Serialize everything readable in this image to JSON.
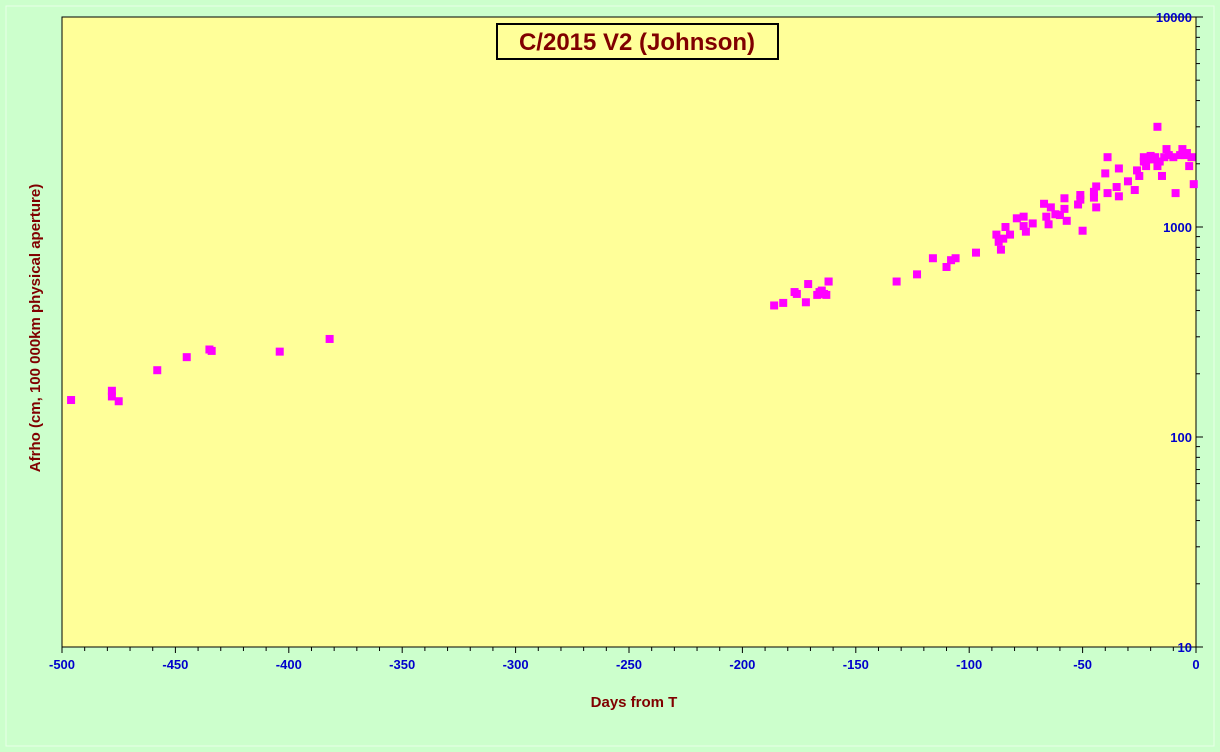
{
  "colors": {
    "background": "#ccffcc",
    "plot_area": "#ffff99",
    "marker": "#ff00ff",
    "tick_label": "#0000cc",
    "title_text": "#800000",
    "axis_title": "#800000"
  },
  "chart_data": {
    "type": "scatter",
    "title": "C/2015 V2 (Johnson)",
    "xlabel": "Days from T",
    "ylabel": "Afrho (cm, 100 000km physical aperture)",
    "xlim": [
      -500,
      0
    ],
    "ylim": [
      10,
      10000
    ],
    "yscale": "log",
    "y_axis_side": "right",
    "grid": false,
    "legend": "none",
    "x_ticks": [
      -500,
      -450,
      -400,
      -350,
      -300,
      -250,
      -200,
      -150,
      -100,
      -50,
      0
    ],
    "x_tick_labels": [
      "-500",
      "-450",
      "-400",
      "-350",
      "-300",
      "-250",
      "-200",
      "-150",
      "-100",
      "-50",
      "0"
    ],
    "y_ticks": [
      10,
      100,
      1000,
      10000
    ],
    "y_tick_labels": [
      "10",
      "100",
      "1000",
      "10000"
    ],
    "series": [
      {
        "marker": "square",
        "color": "#ff00ff",
        "points": [
          [
            -496,
            150
          ],
          [
            -478,
            166
          ],
          [
            -478,
            156
          ],
          [
            -475,
            148
          ],
          [
            -458,
            208
          ],
          [
            -445,
            240
          ],
          [
            -435,
            261
          ],
          [
            -434,
            257
          ],
          [
            -404,
            255
          ],
          [
            -382,
            293
          ],
          [
            -186,
            423
          ],
          [
            -182,
            435
          ],
          [
            -177,
            490
          ],
          [
            -176,
            480
          ],
          [
            -172,
            438
          ],
          [
            -171,
            535
          ],
          [
            -167,
            475
          ],
          [
            -166,
            490
          ],
          [
            -165,
            498
          ],
          [
            -164,
            480
          ],
          [
            -163,
            475
          ],
          [
            -162,
            550
          ],
          [
            -162,
            550
          ],
          [
            -132,
            550
          ],
          [
            -123,
            595
          ],
          [
            -116,
            710
          ],
          [
            -110,
            645
          ],
          [
            -108,
            695
          ],
          [
            -106,
            710
          ],
          [
            -97,
            755
          ],
          [
            -88,
            920
          ],
          [
            -87,
            850
          ],
          [
            -86,
            780
          ],
          [
            -85,
            880
          ],
          [
            -84,
            1000
          ],
          [
            -82,
            920
          ],
          [
            -79,
            1100
          ],
          [
            -76,
            1120
          ],
          [
            -76,
            1010
          ],
          [
            -75,
            950
          ],
          [
            -72,
            1040
          ],
          [
            -67,
            1290
          ],
          [
            -66,
            1120
          ],
          [
            -65,
            1030
          ],
          [
            -64,
            1240
          ],
          [
            -62,
            1150
          ],
          [
            -60,
            1140
          ],
          [
            -58,
            1220
          ],
          [
            -58,
            1370
          ],
          [
            -57,
            1070
          ],
          [
            -52,
            1280
          ],
          [
            -51,
            1350
          ],
          [
            -51,
            1420
          ],
          [
            -50,
            960
          ],
          [
            -45,
            1380
          ],
          [
            -45,
            1470
          ],
          [
            -44,
            1560
          ],
          [
            -44,
            1240
          ],
          [
            -40,
            1800
          ],
          [
            -39,
            2150
          ],
          [
            -39,
            1450
          ],
          [
            -35,
            1550
          ],
          [
            -34,
            1900
          ],
          [
            -34,
            1400
          ],
          [
            -30,
            1650
          ],
          [
            -27,
            1500
          ],
          [
            -26,
            1860
          ],
          [
            -25,
            1750
          ],
          [
            -23,
            2150
          ],
          [
            -23,
            2050
          ],
          [
            -22,
            1950
          ],
          [
            -21,
            2100
          ],
          [
            -20,
            2180
          ],
          [
            -19,
            2100
          ],
          [
            -18,
            2150
          ],
          [
            -17,
            3000
          ],
          [
            -17,
            1950
          ],
          [
            -16,
            2050
          ],
          [
            -15,
            1750
          ],
          [
            -14,
            2150
          ],
          [
            -13,
            2350
          ],
          [
            -12,
            2200
          ],
          [
            -10,
            2150
          ],
          [
            -9,
            1450
          ],
          [
            -7,
            2200
          ],
          [
            -6,
            2350
          ],
          [
            -5,
            2200
          ],
          [
            -4,
            2250
          ],
          [
            -3,
            1950
          ],
          [
            -2,
            2150
          ],
          [
            -1,
            1600
          ]
        ]
      }
    ]
  }
}
